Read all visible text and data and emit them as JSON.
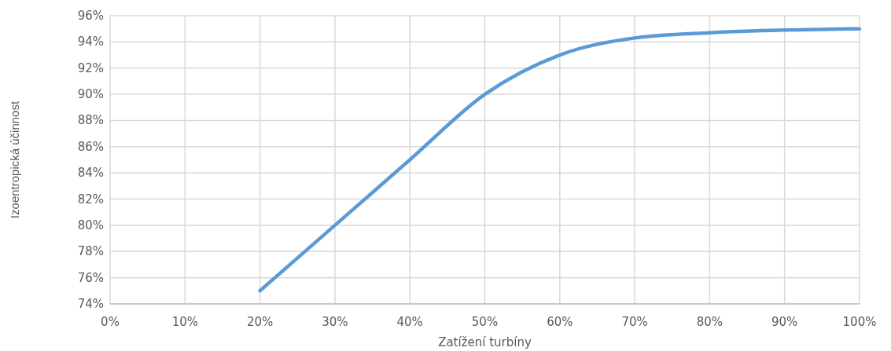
{
  "chart_data": {
    "type": "line",
    "xlabel": "Zatížení turbíny",
    "ylabel": "Izoentropická účinnost",
    "x": [
      20,
      30,
      40,
      50,
      60,
      70,
      80,
      90,
      100
    ],
    "series": [
      {
        "color": "#5b9bd5",
        "values": [
          75,
          80,
          85,
          90,
          93,
          94.3,
          94.7,
          94.9,
          95
        ]
      }
    ],
    "xlim": [
      0,
      100
    ],
    "ylim": [
      74,
      96
    ],
    "xticks": [
      {
        "value": 0,
        "label": "0%"
      },
      {
        "value": 10,
        "label": "10%"
      },
      {
        "value": 20,
        "label": "20%"
      },
      {
        "value": 30,
        "label": "30%"
      },
      {
        "value": 40,
        "label": "40%"
      },
      {
        "value": 50,
        "label": "50%"
      },
      {
        "value": 60,
        "label": "60%"
      },
      {
        "value": 70,
        "label": "70%"
      },
      {
        "value": 80,
        "label": "80%"
      },
      {
        "value": 90,
        "label": "90%"
      },
      {
        "value": 100,
        "label": "100%"
      }
    ],
    "yticks": [
      {
        "value": 74,
        "label": "74%"
      },
      {
        "value": 76,
        "label": "76%"
      },
      {
        "value": 78,
        "label": "78%"
      },
      {
        "value": 80,
        "label": "80%"
      },
      {
        "value": 82,
        "label": "82%"
      },
      {
        "value": 84,
        "label": "84%"
      },
      {
        "value": 86,
        "label": "86%"
      },
      {
        "value": 88,
        "label": "88%"
      },
      {
        "value": 90,
        "label": "90%"
      },
      {
        "value": 92,
        "label": "92%"
      },
      {
        "value": 94,
        "label": "94%"
      },
      {
        "value": 96,
        "label": "96%"
      }
    ],
    "grid": true,
    "marker": "none",
    "line_style": "solid"
  }
}
